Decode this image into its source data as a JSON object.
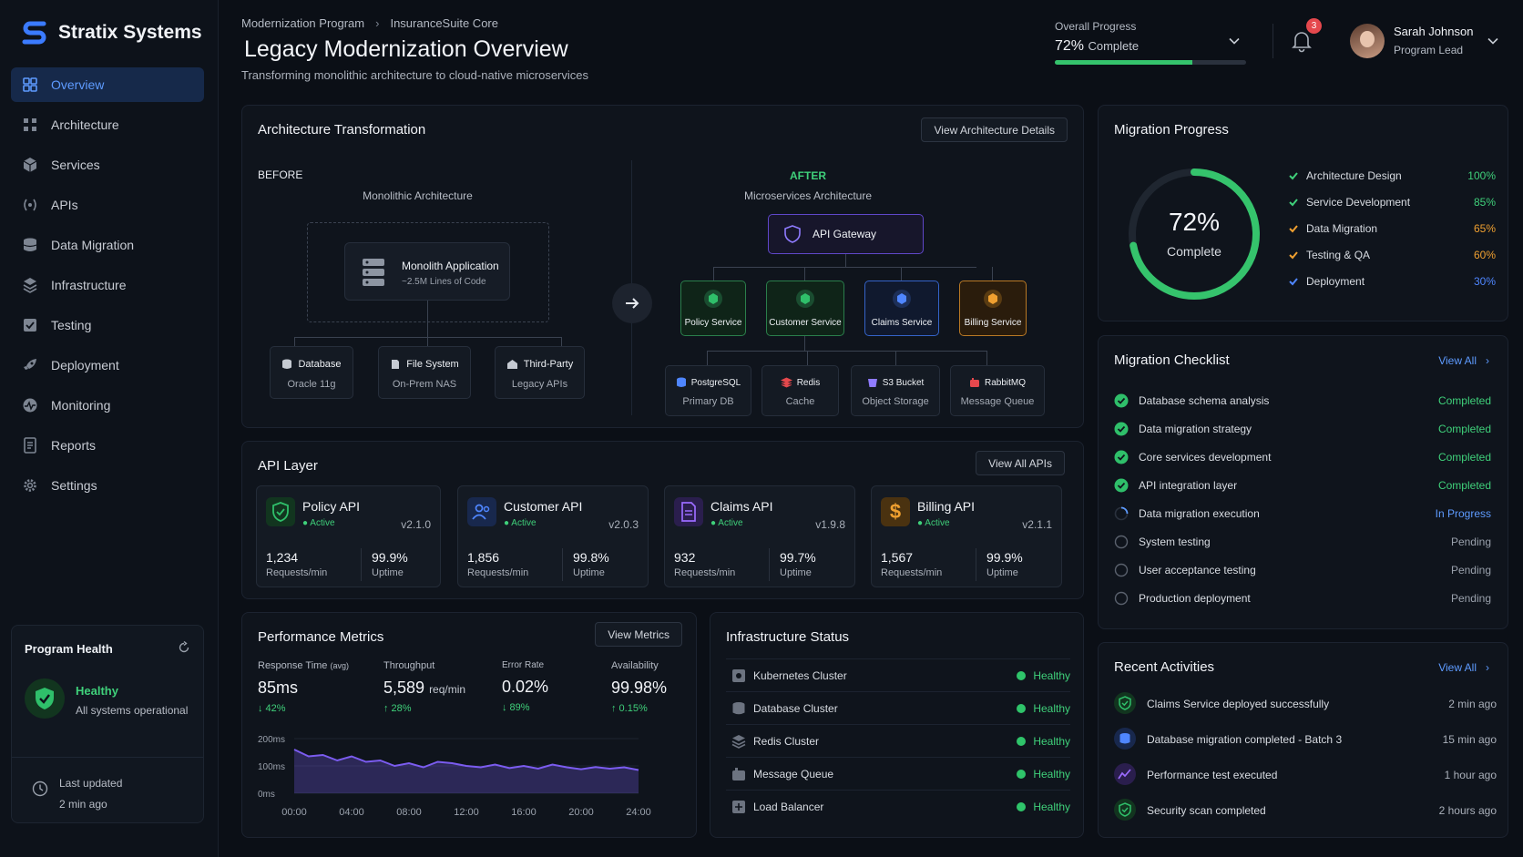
{
  "app": {
    "name": "Stratix Systems"
  },
  "sidebar": {
    "items": [
      {
        "label": "Overview",
        "icon": "grid-icon",
        "active": true
      },
      {
        "label": "Architecture",
        "icon": "architecture-icon"
      },
      {
        "label": "Services",
        "icon": "cube-icon"
      },
      {
        "label": "APIs",
        "icon": "api-icon"
      },
      {
        "label": "Data Migration",
        "icon": "database-icon"
      },
      {
        "label": "Infrastructure",
        "icon": "server-icon"
      },
      {
        "label": "Testing",
        "icon": "testing-icon"
      },
      {
        "label": "Deployment",
        "icon": "rocket-icon"
      },
      {
        "label": "Monitoring",
        "icon": "monitor-icon"
      },
      {
        "label": "Reports",
        "icon": "report-icon"
      },
      {
        "label": "Settings",
        "icon": "gear-icon"
      }
    ],
    "health": {
      "title": "Program Health",
      "status": "Healthy",
      "sub": "All systems operational",
      "last_updated_label": "Last updated",
      "last_updated": "2 min ago"
    }
  },
  "header": {
    "breadcrumb": [
      "Modernization Program",
      "InsuranceSuite Core"
    ],
    "title": "Legacy Modernization Overview",
    "subtitle": "Transforming monolithic architecture to cloud-native microservices",
    "overall_progress": {
      "label": "Overall Progress",
      "value": "72%",
      "suffix": "Complete",
      "fraction": 0.72
    },
    "notifications": "3",
    "user": {
      "name": "Sarah Johnson",
      "role": "Program Lead"
    }
  },
  "architecture": {
    "title": "Architecture Transformation",
    "button": "View Architecture Details",
    "before": {
      "label": "BEFORE",
      "subtitle": "Monolithic Architecture",
      "app": {
        "name": "Monolith Application",
        "sub": "~2.5M Lines of Code"
      },
      "deps": [
        {
          "name": "Database",
          "sub": "Oracle 11g"
        },
        {
          "name": "File System",
          "sub": "On-Prem NAS"
        },
        {
          "name": "Third-Party",
          "sub": "Legacy APIs"
        }
      ]
    },
    "after": {
      "label": "AFTER",
      "subtitle": "Microservices Architecture",
      "gateway": "API Gateway",
      "services": [
        {
          "name": "Policy Service",
          "color": "#2fbf6a"
        },
        {
          "name": "Customer Service",
          "color": "#2fbf6a"
        },
        {
          "name": "Claims Service",
          "color": "#4f86ff"
        },
        {
          "name": "Billing Service",
          "color": "#f0a030"
        }
      ],
      "stores": [
        {
          "name": "PostgreSQL",
          "sub": "Primary DB"
        },
        {
          "name": "Redis",
          "sub": "Cache"
        },
        {
          "name": "S3 Bucket",
          "sub": "Object Storage"
        },
        {
          "name": "RabbitMQ",
          "sub": "Message Queue"
        }
      ]
    }
  },
  "api_layer": {
    "title": "API Layer",
    "button": "View All APIs",
    "apis": [
      {
        "name": "Policy API",
        "status": "Active",
        "version": "v2.1.0",
        "requests": "1,234",
        "requests_label": "Requests/min",
        "uptime": "99.9%",
        "uptime_label": "Uptime",
        "color": "#2fbf6a"
      },
      {
        "name": "Customer API",
        "status": "Active",
        "version": "v2.0.3",
        "requests": "1,856",
        "requests_label": "Requests/min",
        "uptime": "99.8%",
        "uptime_label": "Uptime",
        "color": "#4f86ff"
      },
      {
        "name": "Claims API",
        "status": "Active",
        "version": "v1.9.8",
        "requests": "932",
        "requests_label": "Requests/min",
        "uptime": "99.7%",
        "uptime_label": "Uptime",
        "color": "#9b6bff"
      },
      {
        "name": "Billing API",
        "status": "Active",
        "version": "v2.1.1",
        "requests": "1,567",
        "requests_label": "Requests/min",
        "uptime": "99.9%",
        "uptime_label": "Uptime",
        "color": "#f0a030"
      }
    ]
  },
  "performance": {
    "title": "Performance Metrics",
    "button": "View Metrics",
    "metrics": [
      {
        "label": "Response Time",
        "qualifier": "(avg)",
        "value": "85ms",
        "unit": "",
        "delta": "↓ 42%"
      },
      {
        "label": "Throughput",
        "qualifier": "",
        "value": "5,589",
        "unit": "req/min",
        "delta": "↑ 28%"
      },
      {
        "label": "Error Rate",
        "qualifier": "",
        "value": "0.02%",
        "unit": "",
        "delta": "↓ 89%"
      },
      {
        "label": "Availability",
        "qualifier": "",
        "value": "99.98%",
        "unit": "",
        "delta": "↑ 0.15%"
      }
    ],
    "chart_data": {
      "type": "area",
      "x": [
        "00:00",
        "01:00",
        "02:00",
        "03:00",
        "04:00",
        "05:00",
        "06:00",
        "07:00",
        "08:00",
        "09:00",
        "10:00",
        "11:00",
        "12:00",
        "13:00",
        "14:00",
        "15:00",
        "16:00",
        "17:00",
        "18:00",
        "19:00",
        "20:00",
        "21:00",
        "22:00",
        "23:00",
        "24:00"
      ],
      "values": [
        160,
        135,
        140,
        120,
        135,
        115,
        120,
        100,
        110,
        95,
        115,
        110,
        100,
        95,
        105,
        92,
        100,
        90,
        105,
        95,
        88,
        96,
        90,
        95,
        85
      ],
      "x_ticks": [
        "00:00",
        "04:00",
        "08:00",
        "12:00",
        "16:00",
        "20:00",
        "24:00"
      ],
      "y_ticks": [
        "200ms",
        "100ms",
        "0ms"
      ],
      "ylim": [
        0,
        200
      ],
      "color": "#7b5cf0"
    }
  },
  "infrastructure": {
    "title": "Infrastructure Status",
    "items": [
      {
        "name": "Kubernetes Cluster",
        "status": "Healthy"
      },
      {
        "name": "Database Cluster",
        "status": "Healthy"
      },
      {
        "name": "Redis Cluster",
        "status": "Healthy"
      },
      {
        "name": "Message Queue",
        "status": "Healthy"
      },
      {
        "name": "Load Balancer",
        "status": "Healthy"
      }
    ]
  },
  "migration_progress": {
    "title": "Migration Progress",
    "overall": "72%",
    "overall_label": "Complete",
    "fraction": 0.72,
    "items": [
      {
        "name": "Architecture Design",
        "pct": "100%",
        "color": "#3fd07a"
      },
      {
        "name": "Service Development",
        "pct": "85%",
        "color": "#3fd07a"
      },
      {
        "name": "Data Migration",
        "pct": "65%",
        "color": "#f0a030"
      },
      {
        "name": "Testing & QA",
        "pct": "60%",
        "color": "#f0a030"
      },
      {
        "name": "Deployment",
        "pct": "30%",
        "color": "#4f86ff"
      }
    ]
  },
  "checklist": {
    "title": "Migration Checklist",
    "view_all": "View All",
    "items": [
      {
        "name": "Database schema analysis",
        "status": "Completed",
        "state": "done"
      },
      {
        "name": "Data migration strategy",
        "status": "Completed",
        "state": "done"
      },
      {
        "name": "Core services development",
        "status": "Completed",
        "state": "done"
      },
      {
        "name": "API integration layer",
        "status": "Completed",
        "state": "done"
      },
      {
        "name": "Data migration execution",
        "status": "In Progress",
        "state": "progress"
      },
      {
        "name": "System testing",
        "status": "Pending",
        "state": "pending"
      },
      {
        "name": "User acceptance testing",
        "status": "Pending",
        "state": "pending"
      },
      {
        "name": "Production deployment",
        "status": "Pending",
        "state": "pending"
      }
    ]
  },
  "activities": {
    "title": "Recent Activities",
    "view_all": "View All",
    "items": [
      {
        "name": "Claims Service deployed successfully",
        "time": "2 min ago",
        "icon": "shield-check-icon"
      },
      {
        "name": "Database migration completed - Batch 3",
        "time": "15 min ago",
        "icon": "database-icon"
      },
      {
        "name": "Performance test executed",
        "time": "1 hour ago",
        "icon": "chart-icon"
      },
      {
        "name": "Security scan completed",
        "time": "2 hours ago",
        "icon": "shield-check-icon"
      }
    ]
  }
}
